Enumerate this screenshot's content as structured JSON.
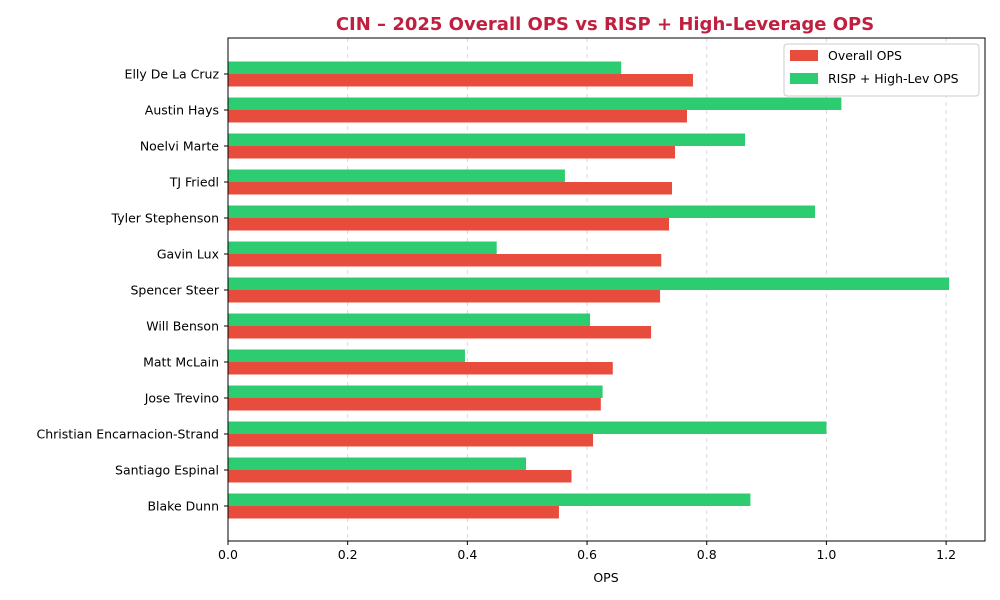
{
  "colors": {
    "title": "#c0203f",
    "overall": "#e74c3c",
    "risp": "#2ecc71",
    "grid": "#d9d9d9",
    "axis": "#000000"
  },
  "chart_data": {
    "type": "bar",
    "orientation": "horizontal",
    "title": "CIN – 2025 Overall OPS vs RISP + High-Leverage OPS",
    "xlabel": "OPS",
    "ylabel": "",
    "xlim": [
      0,
      1.265
    ],
    "xticks": [
      "0.0",
      "0.2",
      "0.4",
      "0.6",
      "0.8",
      "1.0",
      "1.2"
    ],
    "grid": "x-dashed",
    "legend_position": "top-right",
    "categories": [
      "Elly De La Cruz",
      "Austin Hays",
      "Noelvi Marte",
      "TJ Friedl",
      "Tyler Stephenson",
      "Gavin Lux",
      "Spencer Steer",
      "Will Benson",
      "Matt McLain",
      "Jose Trevino",
      "Christian Encarnacion-Strand",
      "Santiago Espinal",
      "Blake Dunn"
    ],
    "series": [
      {
        "name": "Overall OPS",
        "values": [
          0.777,
          0.767,
          0.747,
          0.742,
          0.737,
          0.724,
          0.722,
          0.707,
          0.643,
          0.623,
          0.61,
          0.574,
          0.553
        ]
      },
      {
        "name": "RISP + High-Lev OPS",
        "values": [
          0.657,
          1.025,
          0.864,
          0.563,
          0.981,
          0.449,
          1.205,
          0.605,
          0.396,
          0.626,
          1.0,
          0.498,
          0.873
        ]
      }
    ]
  }
}
